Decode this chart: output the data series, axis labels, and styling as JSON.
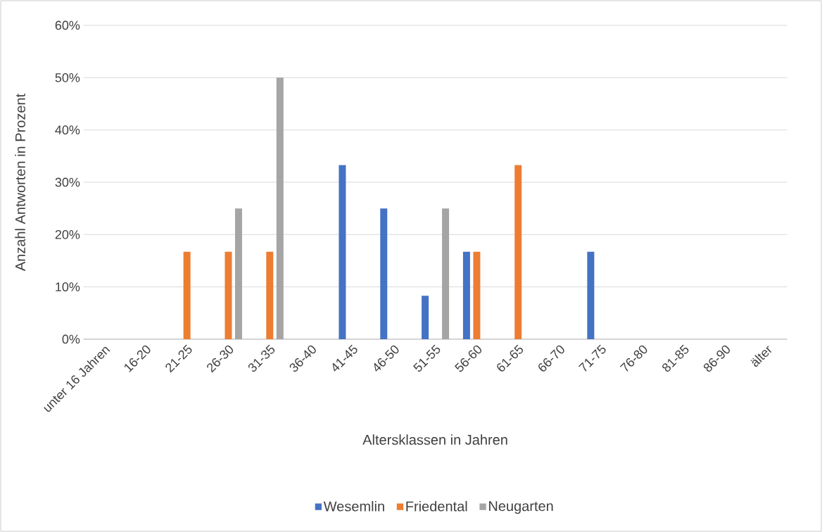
{
  "chart_data": {
    "type": "bar",
    "xlabel": "Altersklassen in Jahren",
    "ylabel": "Anzahl Antworten in Prozent",
    "categories": [
      "unter 16 Jahren",
      "16-20",
      "21-25",
      "26-30",
      "31-35",
      "36-40",
      "41-45",
      "46-50",
      "51-55",
      "56-60",
      "61-65",
      "66-70",
      "71-75",
      "76-80",
      "81-85",
      "86-90",
      "älter"
    ],
    "series": [
      {
        "name": "Wesemlin",
        "color": "#4472c4",
        "values": [
          0,
          0,
          0,
          0,
          0,
          0,
          33.3,
          25,
          8.3,
          16.7,
          0,
          0,
          16.7,
          0,
          0,
          0,
          0
        ]
      },
      {
        "name": "Friedental",
        "color": "#ed7d31",
        "values": [
          0,
          0,
          16.7,
          16.7,
          16.7,
          0,
          0,
          0,
          0,
          16.7,
          33.3,
          0,
          0,
          0,
          0,
          0,
          0
        ]
      },
      {
        "name": "Neugarten",
        "color": "#a5a5a5",
        "values": [
          0,
          0,
          0,
          25,
          50,
          0,
          0,
          0,
          25,
          0,
          0,
          0,
          0,
          0,
          0,
          0,
          0
        ]
      }
    ],
    "ylim": [
      0,
      60
    ],
    "yticks": [
      {
        "value": 0,
        "label": "0%"
      },
      {
        "value": 10,
        "label": "10%"
      },
      {
        "value": 20,
        "label": "20%"
      },
      {
        "value": 30,
        "label": "30%"
      },
      {
        "value": 40,
        "label": "40%"
      },
      {
        "value": 50,
        "label": "50%"
      },
      {
        "value": 60,
        "label": "60%"
      }
    ],
    "grid": "y",
    "legend": "bottom"
  }
}
